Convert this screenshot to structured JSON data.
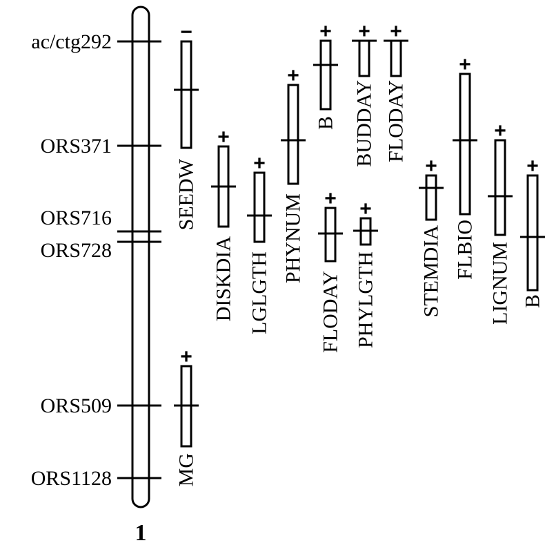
{
  "chromosome": {
    "number": "1",
    "markers": [
      {
        "name": "ac/ctg292"
      },
      {
        "name": "ORS371"
      },
      {
        "name": "ORS716"
      },
      {
        "name": "ORS728"
      },
      {
        "name": "ORS509"
      },
      {
        "name": "ORS1128"
      }
    ]
  },
  "qtls": [
    {
      "trait": "SEEDW",
      "effect": "−"
    },
    {
      "trait": "DISKDIA",
      "effect": "+"
    },
    {
      "trait": "LGLGTH",
      "effect": "+"
    },
    {
      "trait": "PHYNUM",
      "effect": "+"
    },
    {
      "trait": "B",
      "effect": "+"
    },
    {
      "trait": "FLODAY",
      "effect": "+"
    },
    {
      "trait": "BUDDAY",
      "effect": "+"
    },
    {
      "trait": "PHYLGTH",
      "effect": "+"
    },
    {
      "trait": "FLODAY",
      "effect": "+"
    },
    {
      "trait": "STEMDIA",
      "effect": "+"
    },
    {
      "trait": "FLBIO",
      "effect": "+"
    },
    {
      "trait": "LIGNUM",
      "effect": "+"
    },
    {
      "trait": "B",
      "effect": "+"
    },
    {
      "trait": "MG",
      "effect": "+"
    }
  ]
}
